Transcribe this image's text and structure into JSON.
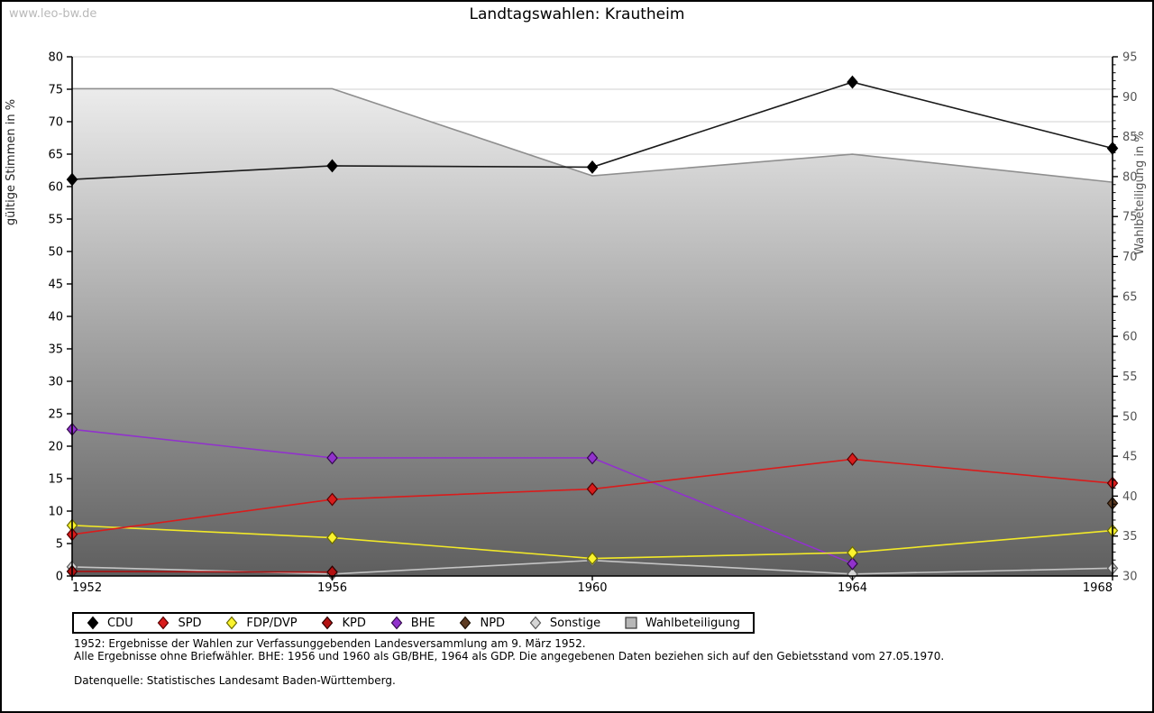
{
  "watermark": "www.leo-bw.de",
  "header": {
    "title": "Landtagswahlen: Krautheim"
  },
  "chart_data": {
    "type": "line",
    "title": "Landtagswahlen: Krautheim",
    "categories": [
      "1952",
      "1956",
      "1960",
      "1964",
      "1968"
    ],
    "ylabel_left": "gültige Stimmen in %",
    "ylabel_right": "Wahlbeteiligung in %",
    "ylim_left": [
      0,
      80
    ],
    "ylim_right": [
      30,
      95
    ],
    "yticks_left": [
      0,
      5,
      10,
      15,
      20,
      25,
      30,
      35,
      40,
      45,
      50,
      55,
      60,
      65,
      70,
      75,
      80
    ],
    "yticks_right": [
      30,
      35,
      40,
      45,
      50,
      55,
      60,
      65,
      70,
      75,
      80,
      85,
      90,
      95
    ],
    "grid": "horizontal gridlines every 5 units of left axis",
    "legend_position": "bottom",
    "series": [
      {
        "name": "CDU",
        "type": "line",
        "axis": "left",
        "marker": "diamond",
        "line_color": "#1a1a1a",
        "fill": "#000000",
        "edge": "#000000",
        "values": [
          61.1,
          63.2,
          63.0,
          76.1,
          65.9
        ]
      },
      {
        "name": "SPD",
        "type": "line",
        "axis": "left",
        "marker": "diamond",
        "line_color": "#d91c1c",
        "fill": "#d91c1c",
        "edge": "#5a0000",
        "values": [
          6.4,
          11.8,
          13.4,
          18.0,
          14.3
        ]
      },
      {
        "name": "FDP/DVP",
        "type": "line",
        "axis": "left",
        "marker": "diamond",
        "line_color": "#f2e928",
        "fill": "#fbf32e",
        "edge": "#6b6b00",
        "values": [
          7.8,
          5.9,
          2.7,
          3.6,
          7.0
        ]
      },
      {
        "name": "KPD",
        "type": "line",
        "axis": "left",
        "marker": "diamond",
        "line_color": "#a80f0f",
        "fill": "#b31212",
        "edge": "#2e0000",
        "values": [
          0.7,
          0.6,
          null,
          null,
          null
        ]
      },
      {
        "name": "BHE",
        "type": "line",
        "axis": "left",
        "marker": "diamond",
        "line_color": "#9132cc",
        "fill": "#9132cc",
        "edge": "#330a4d",
        "values": [
          22.6,
          18.2,
          18.2,
          1.9,
          null
        ]
      },
      {
        "name": "NPD",
        "type": "line",
        "axis": "left",
        "marker": "diamond",
        "line_color": "#5e3c23",
        "fill": "#5e3c23",
        "edge": "#1c0f05",
        "values": [
          null,
          null,
          null,
          null,
          11.2
        ]
      },
      {
        "name": "Sonstige",
        "type": "line",
        "axis": "left",
        "marker": "diamond",
        "line_color": "#c4c4c4",
        "fill": "#d6d6d6",
        "edge": "#5a5a5a",
        "values": [
          1.4,
          0.3,
          2.4,
          0.3,
          1.2
        ]
      },
      {
        "name": "Wahlbeteiligung",
        "type": "area",
        "axis": "right",
        "marker": "square",
        "line_color": "#8f8f8f",
        "fill": "#b7b7b7",
        "edge": "#3a3a3a",
        "area_top_color": "#f5f5f5",
        "area_bottom_color": "#5e5e5e",
        "values": [
          91.0,
          91.0,
          80.1,
          82.8,
          79.3
        ]
      }
    ]
  },
  "footnotes": {
    "line1": "1952: Ergebnisse der Wahlen zur Verfassunggebenden Landesversammlung am 9. März 1952.",
    "line2": "Alle Ergebnisse ohne Briefwähler. BHE: 1956 und 1960 als GB/BHE, 1964 als GDP. Die angegebenen Daten beziehen sich auf den Gebietsstand vom 27.05.1970.",
    "source": "Datenquelle: Statistisches Landesamt Baden-Württemberg."
  }
}
